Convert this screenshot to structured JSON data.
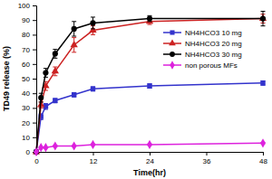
{
  "chart_data": {
    "type": "line",
    "x_label": "Time(hr)",
    "y_label": "TD49 release (%)",
    "x": [
      0,
      1,
      2,
      4,
      8,
      12,
      24,
      48
    ],
    "series": [
      {
        "name": "NH4HCO3 10 mg",
        "color": "#3333cc",
        "marker": "square",
        "values": [
          0,
          24,
          31,
          35,
          39,
          43,
          45,
          47
        ],
        "errors": [
          0,
          2,
          2,
          1.5,
          1.5,
          1.5,
          1.5,
          1.5
        ]
      },
      {
        "name": "NH4HCO3 20 mg",
        "color": "#cc2222",
        "marker": "triangle",
        "values": [
          0,
          32,
          45,
          55,
          73,
          83,
          89,
          91
        ],
        "errors": [
          0,
          2,
          3,
          3,
          5,
          3,
          2,
          3
        ]
      },
      {
        "name": "NH4HCO3 30 mg",
        "color": "#000000",
        "marker": "circle",
        "values": [
          0,
          37,
          54,
          67,
          84,
          88,
          91,
          91
        ],
        "errors": [
          0,
          3,
          3,
          3,
          5,
          4,
          2,
          5
        ]
      },
      {
        "name": "non porous MFs",
        "color": "#dd22dd",
        "marker": "diamond",
        "values": [
          0,
          3,
          3,
          4,
          4,
          5,
          5,
          6
        ],
        "errors": [
          0,
          0.5,
          0.5,
          0.5,
          0.5,
          0.5,
          0.5,
          0.5
        ]
      }
    ],
    "xlim": [
      0,
      48
    ],
    "xticks": [
      0,
      12,
      24,
      36,
      48
    ],
    "ylim": [
      0,
      100
    ],
    "yticks": [
      0,
      10,
      20,
      30,
      40,
      50,
      60,
      70,
      80,
      90,
      100
    ],
    "grid": false,
    "legend": "right"
  }
}
